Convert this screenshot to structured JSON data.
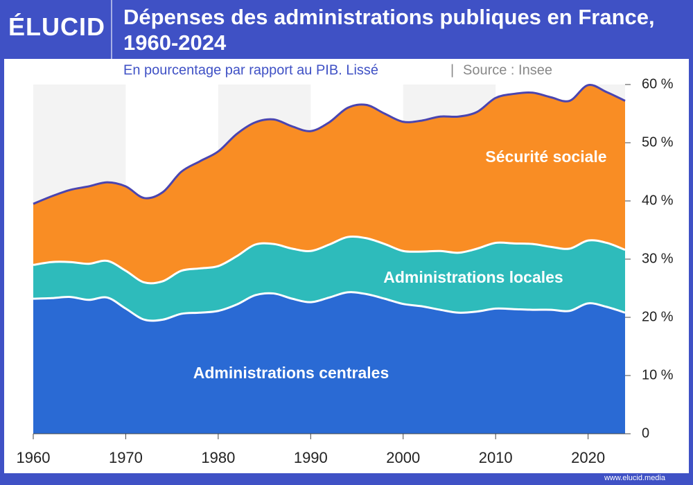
{
  "brand": "ÉLUCID",
  "footer": "www.elucid.media",
  "chart_data": {
    "type": "stacked-area",
    "title": "Dépenses des administrations publiques en France, 1960-2024",
    "subtitle": "En pourcentage par rapport au PIB. Lissé",
    "source": "Source : Insee",
    "x": [
      1960,
      1962,
      1964,
      1966,
      1968,
      1970,
      1972,
      1974,
      1976,
      1978,
      1980,
      1982,
      1984,
      1986,
      1988,
      1990,
      1992,
      1994,
      1996,
      1998,
      2000,
      2002,
      2004,
      2006,
      2008,
      2010,
      2012,
      2014,
      2016,
      2018,
      2020,
      2022,
      2024
    ],
    "series": [
      {
        "name": "Administrations centrales",
        "color": "#2a6ad4",
        "values": [
          23.2,
          23.3,
          23.5,
          23.0,
          23.4,
          21.5,
          19.6,
          19.6,
          20.6,
          20.8,
          21.1,
          22.2,
          23.8,
          24.1,
          23.2,
          22.6,
          23.4,
          24.3,
          24.0,
          23.2,
          22.3,
          21.9,
          21.3,
          20.8,
          21.0,
          21.5,
          21.4,
          21.3,
          21.3,
          21.1,
          22.4,
          21.8,
          20.8
        ]
      },
      {
        "name": "Administrations locales",
        "color": "#2ebbbb",
        "values": [
          5.8,
          6.2,
          6.0,
          6.2,
          6.3,
          6.5,
          6.4,
          6.6,
          7.4,
          7.6,
          7.7,
          8.3,
          8.7,
          8.5,
          8.6,
          8.8,
          9.1,
          9.5,
          9.6,
          9.4,
          9.1,
          9.4,
          10.1,
          10.3,
          10.8,
          11.3,
          11.3,
          11.3,
          10.8,
          10.7,
          10.8,
          11.0,
          10.8
        ]
      },
      {
        "name": "Sécurité sociale",
        "color": "#f98d24",
        "values": [
          10.5,
          11.3,
          12.4,
          13.3,
          13.5,
          14.5,
          14.5,
          15.3,
          17.0,
          18.4,
          19.7,
          21.0,
          21.0,
          21.4,
          21.0,
          20.6,
          21.0,
          22.2,
          22.9,
          22.4,
          22.2,
          22.5,
          23.1,
          23.4,
          23.5,
          24.9,
          25.7,
          26.0,
          25.7,
          25.4,
          26.7,
          25.9,
          25.6
        ]
      }
    ],
    "xlim": [
      1960,
      2024
    ],
    "xticks": [
      1960,
      1970,
      1980,
      1990,
      2000,
      2010,
      2020
    ],
    "ylim": [
      0,
      60
    ],
    "yticks": [
      0,
      {
        "value": 10,
        "label": "10 %"
      },
      {
        "value": 20,
        "label": "20 %"
      },
      {
        "value": 30,
        "label": "30 %"
      },
      {
        "value": 40,
        "label": "40 %"
      },
      {
        "value": 50,
        "label": "50 %"
      },
      {
        "value": 60,
        "label": "60 %"
      }
    ],
    "outline_color": "#4a45b0"
  }
}
